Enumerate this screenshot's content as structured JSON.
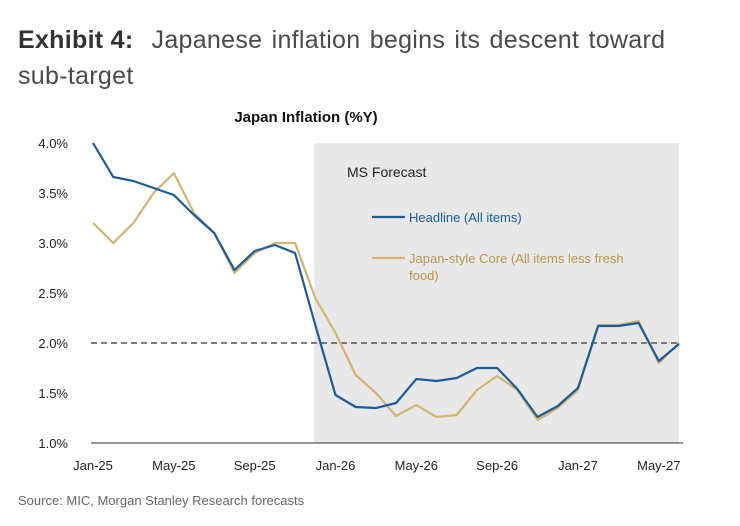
{
  "exhibit": {
    "label": "Exhibit 4:",
    "title": "Japanese inflation begins its descent toward sub-target"
  },
  "source": "Source: MIC, Morgan Stanley Research forecasts",
  "colors": {
    "headline": "#1a5c9e",
    "core": "#d2b56e",
    "forecast_shade": "#e8e8e8",
    "target_line": "#555555"
  },
  "chart_data": {
    "type": "line",
    "title": "Japan Inflation (%Y)",
    "xlabel": "",
    "ylabel": "",
    "ylim": [
      1.0,
      4.0
    ],
    "y_ticks": [
      "4.0%",
      "3.5%",
      "3.0%",
      "2.5%",
      "2.0%",
      "1.5%",
      "1.0%"
    ],
    "y_tick_values": [
      4.0,
      3.5,
      3.0,
      2.5,
      2.0,
      1.5,
      1.0
    ],
    "x_tick_labels": [
      "Jan-25",
      "May-25",
      "Sep-25",
      "Jan-26",
      "May-26",
      "Sep-26",
      "Jan-27",
      "May-27"
    ],
    "x_tick_month_index": [
      0,
      4,
      8,
      12,
      16,
      20,
      24,
      28
    ],
    "months": [
      "Jan-25",
      "Feb-25",
      "Mar-25",
      "Apr-25",
      "May-25",
      "Jun-25",
      "Jul-25",
      "Aug-25",
      "Sep-25",
      "Oct-25",
      "Nov-25",
      "Dec-25",
      "Jan-26",
      "Feb-26",
      "Mar-26",
      "Apr-26",
      "May-26",
      "Jun-26",
      "Jul-26",
      "Aug-26",
      "Sep-26",
      "Oct-26",
      "Nov-26",
      "Dec-26",
      "Jan-27",
      "Feb-27",
      "Mar-27",
      "Apr-27",
      "May-27",
      "Jun-27"
    ],
    "forecast_start_index": 11,
    "forecast_label": "MS Forecast",
    "target_value": 2.0,
    "series": [
      {
        "name": "Headline (All items)",
        "color": "#1a5c9e",
        "values": [
          4.0,
          3.66,
          3.62,
          3.55,
          3.48,
          3.28,
          3.1,
          2.73,
          2.92,
          2.98,
          2.9,
          2.18,
          1.48,
          1.36,
          1.35,
          1.4,
          1.64,
          1.62,
          1.65,
          1.75,
          1.75,
          1.54,
          1.26,
          1.37,
          1.55,
          2.17,
          2.17,
          2.2,
          1.82,
          1.99
        ]
      },
      {
        "name": "Japan-style Core (All items less fresh food)",
        "legend_lines": [
          "Japan-style Core (All items less fresh",
          "food)"
        ],
        "color": "#d2b56e",
        "values": [
          3.2,
          3.0,
          3.2,
          3.5,
          3.7,
          3.3,
          3.1,
          2.7,
          2.9,
          3.0,
          3.0,
          2.45,
          2.1,
          1.68,
          1.5,
          1.27,
          1.38,
          1.26,
          1.28,
          1.53,
          1.67,
          1.53,
          1.23,
          1.35,
          1.53,
          2.18,
          2.18,
          2.22,
          1.8,
          2.0
        ]
      }
    ],
    "legend_position": "inside forecast region, upper-left"
  }
}
